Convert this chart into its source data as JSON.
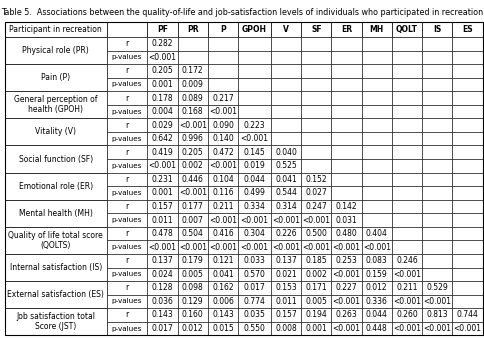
{
  "title": "Table 5.  Associations between the quality-of-life and job-satisfaction levels of individuals who participated in recreation",
  "col_labels": [
    "Participant in recreation",
    "",
    "PF",
    "PR",
    "P",
    "GPOH",
    "V",
    "SF",
    "ER",
    "MH",
    "QOLT",
    "IS",
    "ES"
  ],
  "row_groups": [
    {
      "label": "Physical role (PR)",
      "r": [
        "0.282",
        "",
        "",
        "",
        "",
        "",
        "",
        "",
        "",
        "",
        "",
        ""
      ],
      "p": [
        "<0.001",
        "",
        "",
        "",
        "",
        "",
        "",
        "",
        "",
        "",
        "",
        ""
      ]
    },
    {
      "label": "Pain (P)",
      "r": [
        "0.205",
        "0.172",
        "",
        "",
        "",
        "",
        "",
        "",
        "",
        "",
        "",
        ""
      ],
      "p": [
        "0.001",
        "0.009",
        "",
        "",
        "",
        "",
        "",
        "",
        "",
        "",
        "",
        ""
      ]
    },
    {
      "label": "General perception of\nhealth (GPOH)",
      "r": [
        "0.178",
        "0.089",
        "0.217",
        "",
        "",
        "",
        "",
        "",
        "",
        "",
        "",
        ""
      ],
      "p": [
        "0.004",
        "0.168",
        "<0.001",
        "",
        "",
        "",
        "",
        "",
        "",
        "",
        "",
        ""
      ]
    },
    {
      "label": "Vitality (V)",
      "r": [
        "0.029",
        "<0.001",
        "0.090",
        "0.223",
        "",
        "",
        "",
        "",
        "",
        "",
        "",
        ""
      ],
      "p": [
        "0.642",
        "0.996",
        "0.140",
        "<0.001",
        "",
        "",
        "",
        "",
        "",
        "",
        "",
        ""
      ]
    },
    {
      "label": "Social function (SF)",
      "r": [
        "0.419",
        "0.205",
        "0.472",
        "0.145",
        "0.040",
        "",
        "",
        "",
        "",
        "",
        "",
        ""
      ],
      "p": [
        "<0.001",
        "0.002",
        "<0.001",
        "0.019",
        "0.525",
        "",
        "",
        "",
        "",
        "",
        "",
        ""
      ]
    },
    {
      "label": "Emotional role (ER)",
      "r": [
        "0.231",
        "0.446",
        "0.104",
        "0.044",
        "0.041",
        "0.152",
        "",
        "",
        "",
        "",
        "",
        ""
      ],
      "p": [
        "0.001",
        "<0.001",
        "0.116",
        "0.499",
        "0.544",
        "0.027",
        "",
        "",
        "",
        "",
        "",
        ""
      ]
    },
    {
      "label": "Mental health (MH)",
      "r": [
        "0.157",
        "0.177",
        "0.211",
        "0.334",
        "0.314",
        "0.247",
        "0.142",
        "",
        "",
        "",
        "",
        ""
      ],
      "p": [
        "0.011",
        "0.007",
        "<0.001",
        "<0.001",
        "<0.001",
        "<0.001",
        "0.031",
        "",
        "",
        "",
        "",
        ""
      ]
    },
    {
      "label": "Quality of life total score\n(QOLTS)",
      "r": [
        "0.478",
        "0.504",
        "0.416",
        "0.304",
        "0.226",
        "0.500",
        "0.480",
        "0.404",
        "",
        "",
        "",
        ""
      ],
      "p": [
        "<0.001",
        "<0.001",
        "<0.001",
        "<0.001",
        "<0.001",
        "<0.001",
        "<0.001",
        "<0.001",
        "",
        "",
        "",
        ""
      ]
    },
    {
      "label": "Internal satisfaction (IS)",
      "r": [
        "0.137",
        "0.179",
        "0.121",
        "0.033",
        "0.137",
        "0.185",
        "0.253",
        "0.083",
        "0.246",
        "",
        "",
        ""
      ],
      "p": [
        "0.024",
        "0.005",
        "0.041",
        "0.570",
        "0.021",
        "0.002",
        "<0.001",
        "0.159",
        "<0.001",
        "",
        "",
        ""
      ]
    },
    {
      "label": "External satisfaction (ES)",
      "r": [
        "0.128",
        "0.098",
        "0.162",
        "0.017",
        "0.153",
        "0.171",
        "0.227",
        "0.012",
        "0.211",
        "0.529",
        "",
        ""
      ],
      "p": [
        "0.036",
        "0.129",
        "0.006",
        "0.774",
        "0.011",
        "0.005",
        "<0.001",
        "0.336",
        "<0.001",
        "<0.001",
        "",
        ""
      ]
    },
    {
      "label": "Job satisfaction total\nScore (JST)",
      "r": [
        "0.143",
        "0.160",
        "0.143",
        "0.035",
        "0.157",
        "0.194",
        "0.263",
        "0.044",
        "0.260",
        "0.813",
        "0.744",
        ""
      ],
      "p": [
        "0.017",
        "0.012",
        "0.015",
        "0.550",
        "0.008",
        "0.001",
        "<0.001",
        "0.448",
        "<0.001",
        "<0.001",
        "<0.001",
        ""
      ]
    }
  ],
  "col_widths_rel": [
    1.55,
    0.62,
    0.46,
    0.46,
    0.46,
    0.5,
    0.46,
    0.46,
    0.46,
    0.46,
    0.46,
    0.46,
    0.46
  ],
  "font_size": 5.5,
  "title_font_size": 5.8,
  "bg_color": "#ffffff"
}
